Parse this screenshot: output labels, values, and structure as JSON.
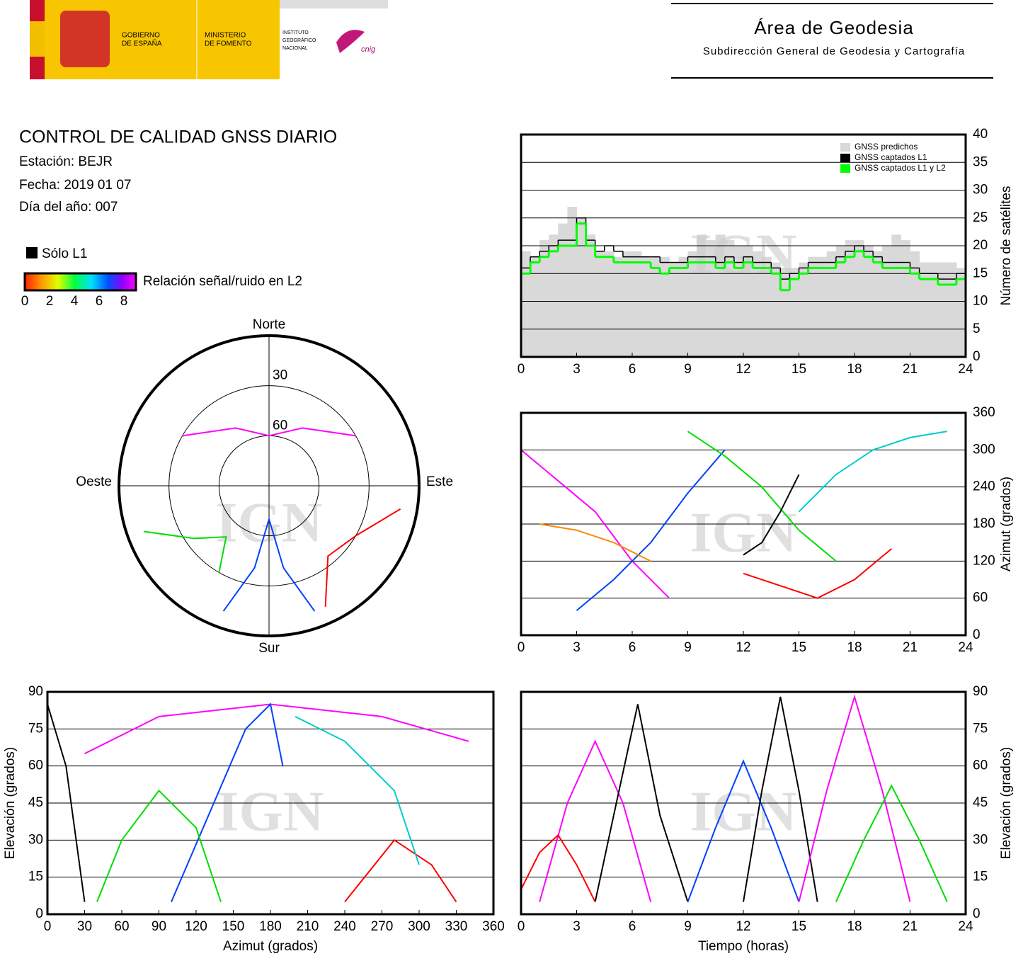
{
  "header": {
    "gov": [
      "GOBIERNO",
      "DE ESPAÑA"
    ],
    "ministry": [
      "MINISTERIO",
      "DE FOMENTO"
    ],
    "institute": [
      "INSTITUTO",
      "GEOGRÁFICO",
      "NACIONAL"
    ],
    "cnig": "cnig",
    "area": "Área de Geodesia",
    "subarea": "Subdirección General de Geodesia y Cartografía",
    "watermark": "IGN"
  },
  "report": {
    "title": "CONTROL DE CALIDAD GNSS DIARIO",
    "station": "Estación: BEJR",
    "date": "Fecha: 2019 01 07",
    "doy": "Día del año: 007"
  },
  "legend": {
    "l1": "Sólo L1",
    "colorbar": "Relación señal/ruido en L2",
    "ticks": [
      0,
      2,
      4,
      6,
      8
    ]
  },
  "chart_data": [
    {
      "type": "step",
      "ylabel": "Número de satélites",
      "xlim": [
        0,
        24
      ],
      "xticks": [
        0,
        3,
        6,
        9,
        12,
        15,
        18,
        21,
        24
      ],
      "ylim": [
        0,
        40
      ],
      "yticks": [
        0,
        5,
        10,
        15,
        20,
        25,
        30,
        35,
        40
      ],
      "grid": true,
      "x": [
        0,
        0.5,
        1,
        1.5,
        2,
        2.5,
        3,
        3.5,
        4,
        4.5,
        5,
        5.5,
        6,
        6.5,
        7,
        7.5,
        8,
        8.5,
        9,
        9.5,
        10,
        10.5,
        11,
        11.5,
        12,
        12.5,
        13,
        13.5,
        14,
        14.5,
        15,
        15.5,
        16,
        16.5,
        17,
        17.5,
        18,
        18.5,
        19,
        19.5,
        20,
        20.5,
        21,
        21.5,
        22,
        22.5,
        23,
        23.5
      ],
      "series": [
        {
          "name": "GNSS predichos",
          "color": "#d9d9d9",
          "area": true,
          "values": [
            19,
            18,
            21,
            22,
            24,
            27,
            25,
            22,
            19,
            19,
            18,
            19,
            19,
            18,
            18,
            18,
            17,
            18,
            19,
            22,
            21,
            22,
            21,
            20,
            20,
            19,
            18,
            17,
            16,
            16,
            17,
            18,
            18,
            19,
            20,
            21,
            21,
            20,
            19,
            20,
            22,
            21,
            19,
            17,
            17,
            17,
            17,
            16
          ]
        },
        {
          "name": "GNSS captados L1",
          "color": "#000000",
          "area": false,
          "values": [
            16,
            18,
            19,
            20,
            21,
            21,
            25,
            21,
            19,
            20,
            19,
            18,
            18,
            18,
            18,
            17,
            17,
            17,
            18,
            18,
            18,
            17,
            18,
            17,
            18,
            17,
            17,
            16,
            14,
            15,
            16,
            17,
            17,
            17,
            18,
            19,
            20,
            19,
            18,
            17,
            17,
            17,
            16,
            15,
            15,
            14,
            14,
            15
          ]
        },
        {
          "name": "GNSS captados L1 y L2",
          "color": "#00ff00",
          "area": false,
          "values": [
            15,
            17,
            18,
            19,
            20,
            20,
            24,
            20,
            18,
            18,
            17,
            17,
            17,
            17,
            16,
            15,
            16,
            16,
            17,
            17,
            17,
            16,
            17,
            16,
            17,
            16,
            16,
            15,
            12,
            14,
            15,
            16,
            16,
            16,
            17,
            18,
            19,
            18,
            17,
            16,
            16,
            16,
            15,
            14,
            14,
            13,
            13,
            14
          ]
        }
      ]
    },
    {
      "type": "line",
      "ylabel": "Azimut (grados)",
      "xlim": [
        0,
        24
      ],
      "xticks": [
        0,
        3,
        6,
        9,
        12,
        15,
        18,
        21,
        24
      ],
      "ylim": [
        0,
        360
      ],
      "yticks": [
        0,
        60,
        120,
        180,
        240,
        300,
        360
      ],
      "grid": true,
      "series": [
        {
          "color": "#ff00ff",
          "x": [
            0,
            2,
            4,
            6,
            8
          ],
          "values": [
            300,
            250,
            200,
            120,
            60
          ]
        },
        {
          "color": "#0040ff",
          "x": [
            3,
            5,
            7,
            9,
            11
          ],
          "values": [
            40,
            90,
            150,
            230,
            300
          ]
        },
        {
          "color": "#00dd00",
          "x": [
            9,
            11,
            13,
            15,
            17
          ],
          "values": [
            330,
            290,
            240,
            170,
            120
          ]
        },
        {
          "color": "#ff0000",
          "x": [
            12,
            14,
            16,
            18,
            20
          ],
          "values": [
            100,
            80,
            60,
            90,
            140
          ]
        },
        {
          "color": "#00cccc",
          "x": [
            15,
            17,
            19,
            21,
            23
          ],
          "values": [
            200,
            260,
            300,
            320,
            330
          ]
        },
        {
          "color": "#ff8800",
          "x": [
            1,
            3,
            5,
            7
          ],
          "values": [
            180,
            170,
            150,
            120
          ]
        },
        {
          "color": "#000000",
          "x": [
            12,
            13,
            14,
            15
          ],
          "values": [
            130,
            150,
            200,
            260
          ]
        }
      ]
    },
    {
      "type": "line",
      "xlabel": "Azimut (grados)",
      "ylabel": "Elevación (grados)",
      "xlim": [
        0,
        360
      ],
      "xticks": [
        0,
        30,
        60,
        90,
        120,
        150,
        180,
        210,
        240,
        270,
        300,
        330,
        360
      ],
      "ylim": [
        0,
        90
      ],
      "yticks": [
        0,
        15,
        30,
        45,
        60,
        75,
        90
      ],
      "grid": true,
      "yside": "left",
      "series": [
        {
          "color": "#ff00ff",
          "x": [
            30,
            90,
            180,
            270,
            340
          ],
          "values": [
            65,
            80,
            85,
            80,
            70
          ]
        },
        {
          "color": "#0040ff",
          "x": [
            100,
            130,
            160,
            180,
            190
          ],
          "values": [
            5,
            40,
            75,
            85,
            60
          ]
        },
        {
          "color": "#000000",
          "x": [
            0,
            15,
            30
          ],
          "values": [
            85,
            60,
            5
          ]
        },
        {
          "color": "#ff0000",
          "x": [
            240,
            280,
            310,
            330
          ],
          "values": [
            5,
            30,
            20,
            5
          ]
        },
        {
          "color": "#00dd00",
          "x": [
            40,
            60,
            90,
            120,
            140
          ],
          "values": [
            5,
            30,
            50,
            35,
            5
          ]
        },
        {
          "color": "#00cccc",
          "x": [
            200,
            240,
            280,
            300
          ],
          "values": [
            80,
            70,
            50,
            20
          ]
        }
      ]
    },
    {
      "type": "line",
      "xlabel": "Tiempo (horas)",
      "ylabel": "Elevación (grados)",
      "xlim": [
        0,
        24
      ],
      "xticks": [
        0,
        3,
        6,
        9,
        12,
        15,
        18,
        21,
        24
      ],
      "ylim": [
        0,
        90
      ],
      "yticks": [
        0,
        15,
        30,
        45,
        60,
        75,
        90
      ],
      "grid": true,
      "series": [
        {
          "color": "#ff00ff",
          "x": [
            1,
            2.5,
            4,
            5.5,
            7
          ],
          "values": [
            5,
            45,
            70,
            45,
            5
          ]
        },
        {
          "color": "#000000",
          "x": [
            4,
            5,
            6.3,
            7.5,
            9
          ],
          "values": [
            5,
            40,
            85,
            40,
            5
          ]
        },
        {
          "color": "#0040ff",
          "x": [
            9,
            10.5,
            12,
            13.5,
            15
          ],
          "values": [
            5,
            35,
            62,
            35,
            5
          ]
        },
        {
          "color": "#000000",
          "x": [
            12,
            13,
            14,
            15,
            16
          ],
          "values": [
            5,
            50,
            88,
            50,
            5
          ]
        },
        {
          "color": "#ff00ff",
          "x": [
            15,
            16.5,
            18,
            19.5,
            21
          ],
          "values": [
            5,
            50,
            88,
            50,
            5
          ]
        },
        {
          "color": "#00dd00",
          "x": [
            17,
            18.5,
            20,
            21.5,
            23
          ],
          "values": [
            5,
            30,
            52,
            30,
            5
          ]
        },
        {
          "color": "#ff0000",
          "x": [
            0,
            1,
            2,
            3,
            4
          ],
          "values": [
            10,
            25,
            32,
            20,
            5
          ]
        }
      ]
    },
    {
      "type": "polar",
      "north": "Norte",
      "south": "Sur",
      "east": "Este",
      "west": "Oeste",
      "ylim": [
        0,
        90
      ],
      "rticks": [
        30,
        60
      ],
      "series": [
        {
          "color": "#ff00ff",
          "x": [
            300,
            330,
            0,
            30,
            60
          ],
          "values": [
            30,
            50,
            60,
            50,
            30
          ]
        },
        {
          "color": "#0040ff",
          "x": [
            200,
            190,
            180,
            170,
            160
          ],
          "values": [
            10,
            40,
            70,
            40,
            10
          ]
        },
        {
          "color": "#00dd00",
          "x": [
            250,
            235,
            220,
            210
          ],
          "values": [
            10,
            35,
            50,
            30
          ]
        },
        {
          "color": "#ff0000",
          "x": [
            100,
            120,
            140,
            155
          ],
          "values": [
            10,
            30,
            35,
            10
          ]
        }
      ]
    }
  ]
}
